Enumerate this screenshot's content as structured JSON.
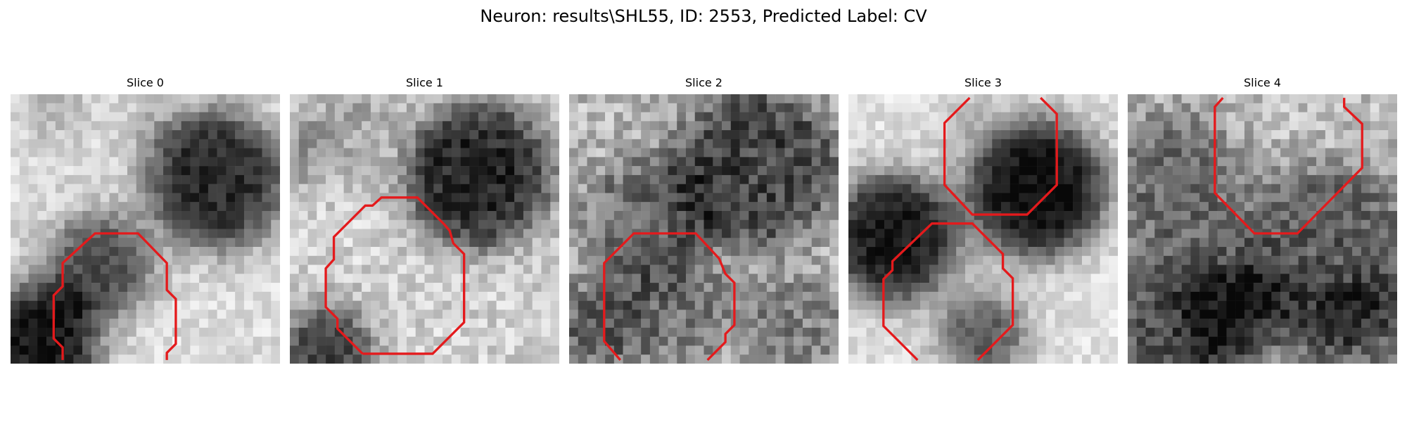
{
  "figure": {
    "title": "Neuron: results\\SHL55, ID: 2553, Predicted Label: CV"
  },
  "colors": {
    "contour": "#e41a1c",
    "background": "#ffffff"
  },
  "image_style": {
    "colormap": "grayscale",
    "grid_cells_per_side": 30,
    "axes_visible": false
  },
  "slices": [
    {
      "title": "Slice 0"
    },
    {
      "title": "Slice 1"
    },
    {
      "title": "Slice 2"
    },
    {
      "title": "Slice 3"
    },
    {
      "title": "Slice 4"
    }
  ]
}
